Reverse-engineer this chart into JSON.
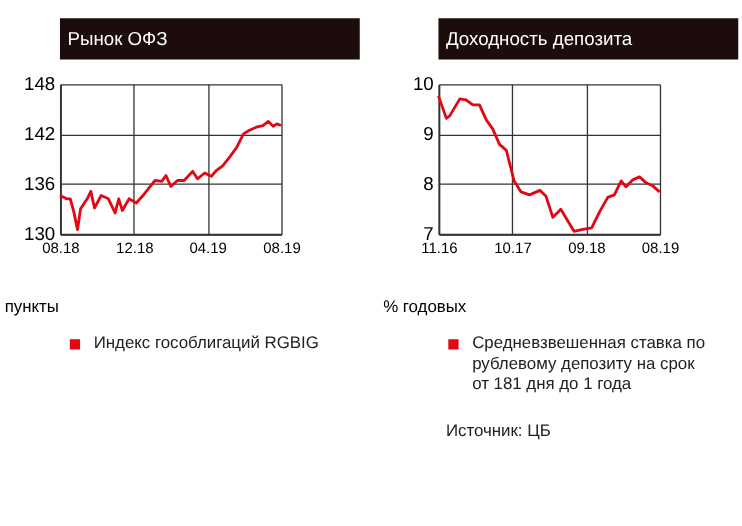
{
  "chart_data": [
    {
      "type": "line",
      "title": "Рынок ОФЗ",
      "ylabel": "пункты",
      "legend": "bottom",
      "grid": true,
      "marker": "none",
      "ylim": [
        130,
        148
      ],
      "yticks": [
        130,
        136,
        142,
        148
      ],
      "xlim": [
        "2018-08-01",
        "2019-08-01"
      ],
      "xticks": [
        {
          "value": "2018-08-01",
          "label": "08.18"
        },
        {
          "value": "2018-12-01",
          "label": "12.18"
        },
        {
          "value": "2019-04-01",
          "label": "04.19"
        },
        {
          "value": "2019-08-01",
          "label": "08.19"
        }
      ],
      "x": [
        "2018-08-01",
        "2018-08-12",
        "2018-08-18",
        "2018-08-24",
        "2018-08-30",
        "2018-09-04",
        "2018-09-15",
        "2018-09-21",
        "2018-09-27",
        "2018-10-08",
        "2018-10-20",
        "2018-10-31",
        "2018-11-06",
        "2018-11-12",
        "2018-11-23",
        "2018-12-05",
        "2018-12-16",
        "2018-12-28",
        "2019-01-05",
        "2019-01-16",
        "2019-01-23",
        "2019-01-31",
        "2019-02-11",
        "2019-02-22",
        "2019-03-08",
        "2019-03-16",
        "2019-03-28",
        "2019-04-08",
        "2019-04-16",
        "2019-04-27",
        "2019-05-09",
        "2019-05-20",
        "2019-05-31",
        "2019-06-09",
        "2019-06-21",
        "2019-07-02",
        "2019-07-11",
        "2019-07-19",
        "2019-07-25",
        "2019-08-01"
      ],
      "series": [
        {
          "name": "Индекс гособлигаций RGBIG",
          "color": "#e30613",
          "values": [
            134.6,
            134.2,
            134.2,
            132.6,
            130.5,
            133.0,
            134.2,
            135.1,
            133.1,
            134.6,
            134.2,
            132.5,
            134.2,
            132.8,
            134.2,
            133.7,
            134.6,
            135.7,
            136.4,
            136.3,
            137.0,
            135.7,
            136.4,
            136.4,
            137.5,
            136.6,
            137.3,
            136.9,
            137.6,
            138.2,
            139.3,
            140.4,
            142.0,
            142.4,
            142.8,
            143.0,
            143.5,
            142.9,
            143.2,
            143.0
          ]
        }
      ]
    },
    {
      "type": "line",
      "title": "Доходность депозита",
      "ylabel": "% годовых",
      "legend": "bottom",
      "grid": true,
      "marker": "none",
      "ylim": [
        7,
        10
      ],
      "yticks": [
        7,
        8,
        9,
        10
      ],
      "xlim": [
        "2016-11-01",
        "2019-08-01"
      ],
      "xticks": [
        {
          "value": "2016-11-01",
          "label": "11.16"
        },
        {
          "value": "2017-10-01",
          "label": "10.17"
        },
        {
          "value": "2018-09-01",
          "label": "09.18"
        },
        {
          "value": "2019-08-01",
          "label": "08.19"
        }
      ],
      "x": [
        "2016-11-01",
        "2016-12-07",
        "2016-12-22",
        "2017-02-06",
        "2017-03-06",
        "2017-04-06",
        "2017-05-06",
        "2017-06-06",
        "2017-07-05",
        "2017-08-05",
        "2017-09-05",
        "2017-10-10",
        "2017-11-10",
        "2017-12-19",
        "2018-02-04",
        "2018-03-04",
        "2018-04-04",
        "2018-05-10",
        "2018-06-09",
        "2018-07-09",
        "2018-08-18",
        "2018-09-27",
        "2018-11-03",
        "2018-12-09",
        "2019-01-08",
        "2019-02-08",
        "2019-03-02",
        "2019-04-02",
        "2019-05-02",
        "2019-06-01",
        "2019-07-01",
        "2019-08-01"
      ],
      "series": [
        {
          "name": "Средневзвешенная ставка по рублевому депозиту на срок от 181 дня до 1 года",
          "color": "#e30613",
          "values": [
            9.76,
            9.31,
            9.36,
            9.7,
            9.68,
            9.58,
            9.58,
            9.28,
            9.1,
            8.79,
            8.67,
            8.06,
            7.84,
            7.78,
            7.87,
            7.75,
            7.33,
            7.49,
            7.27,
            7.05,
            7.09,
            7.12,
            7.45,
            7.73,
            7.78,
            8.06,
            7.94,
            8.08,
            8.14,
            8.02,
            7.96,
            7.84
          ]
        }
      ],
      "annotations": [
        "Источник: ЦБ"
      ]
    }
  ]
}
